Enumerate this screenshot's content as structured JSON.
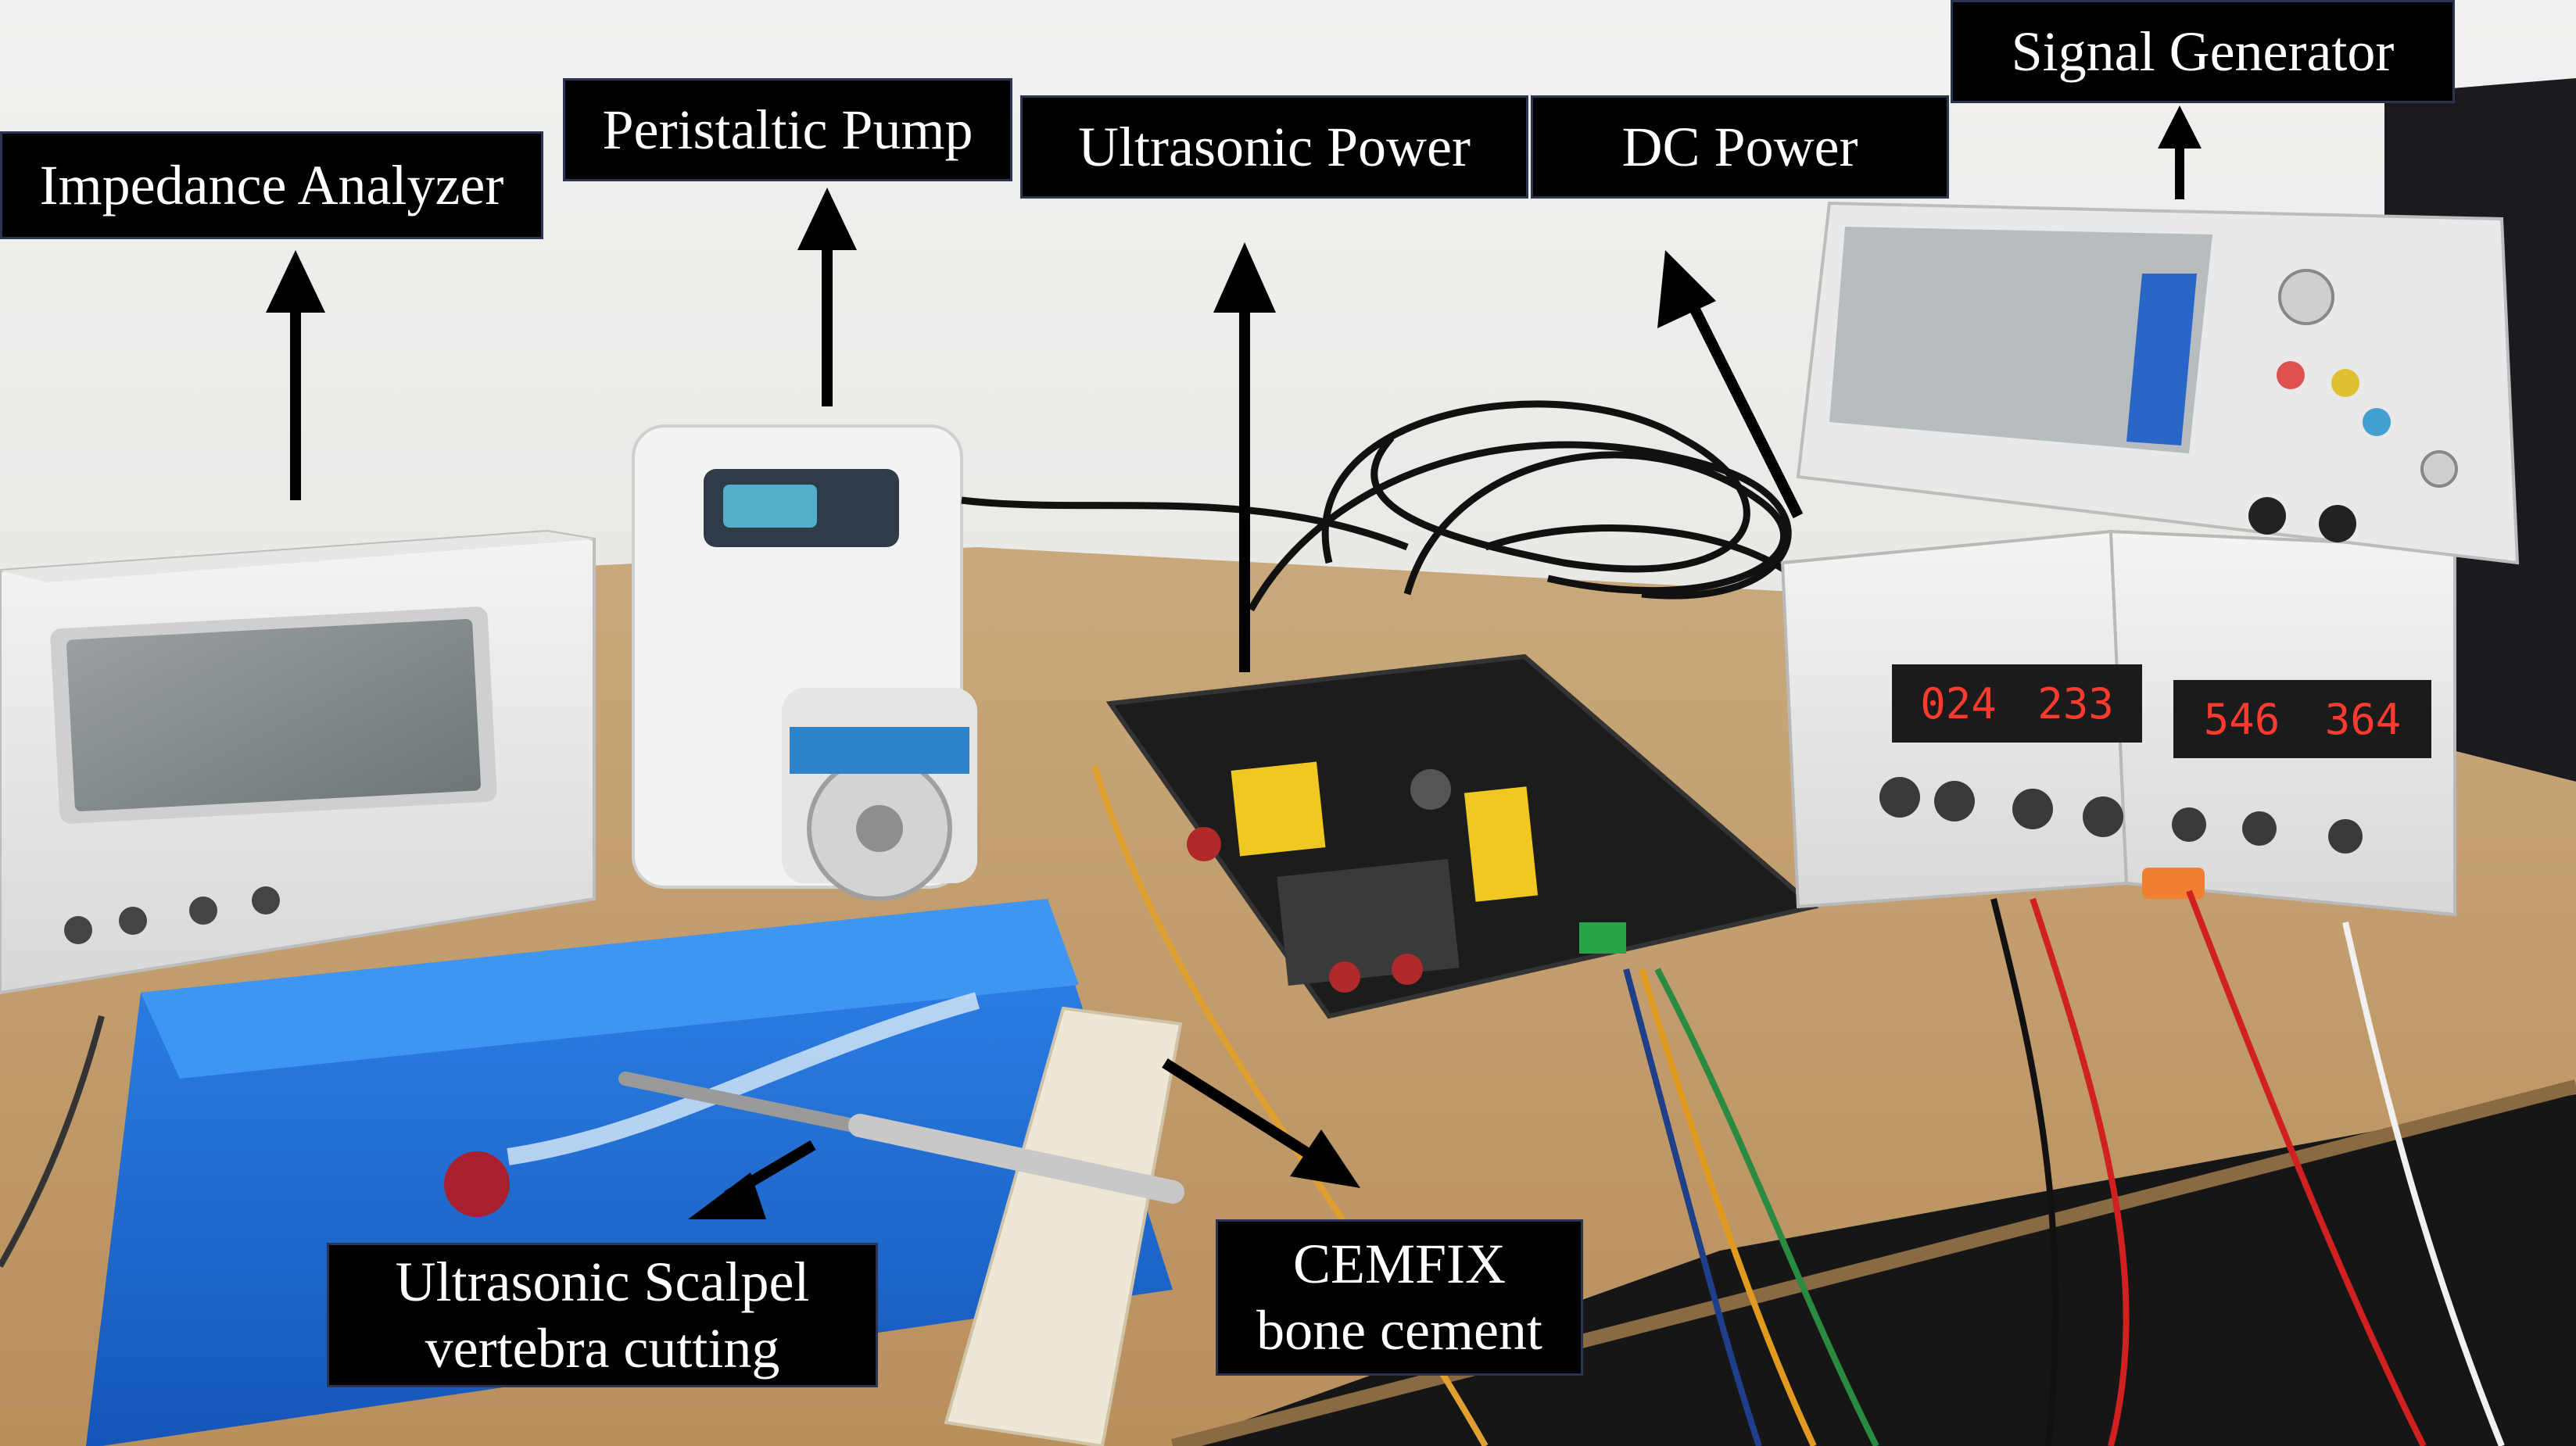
{
  "labels": {
    "impedance_analyzer": "Impedance Analyzer",
    "peristaltic_pump": "Peristaltic Pump",
    "ultrasonic_power": "Ultrasonic Power",
    "dc_power": "DC Power",
    "signal_generator": "Signal Generator",
    "ultrasonic_scalpel": {
      "line1": "Ultrasonic Scalpel",
      "line2": "vertebra cutting"
    },
    "bone_cement": {
      "line1": "CEMFIX",
      "line2": "bone cement"
    }
  },
  "displays": {
    "dc_power_left": {
      "left": "024",
      "right": "233"
    },
    "dc_power_right": {
      "left": "546",
      "right": "364"
    }
  },
  "colors": {
    "label_bg": "#000000",
    "label_text": "#ffffff",
    "arrow": "#000000",
    "table": "#c9a574",
    "wall": "#e9e9e6",
    "tray": "#1f6fd6",
    "pcb": "#1c1c1c"
  }
}
